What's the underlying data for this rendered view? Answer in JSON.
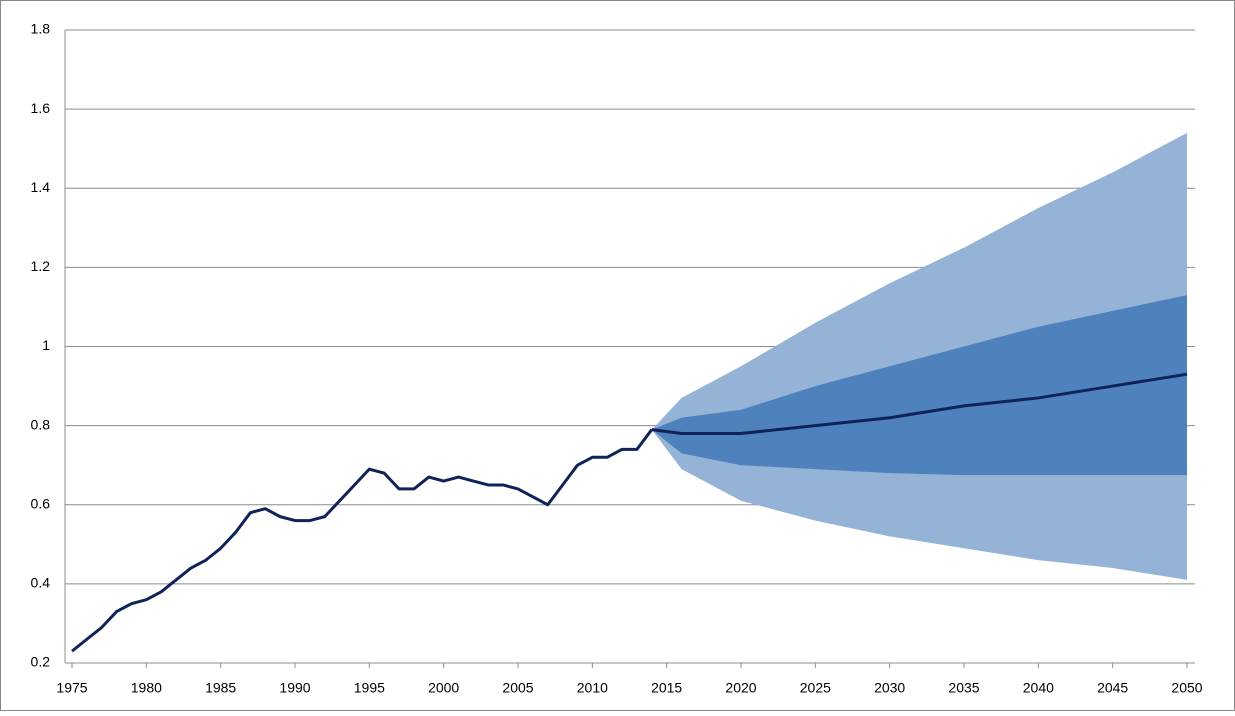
{
  "chart_data": {
    "type": "line",
    "x": [
      1975,
      1976,
      1977,
      1978,
      1979,
      1980,
      1981,
      1982,
      1983,
      1984,
      1985,
      1986,
      1987,
      1988,
      1989,
      1990,
      1991,
      1992,
      1993,
      1994,
      1995,
      1996,
      1997,
      1998,
      1999,
      2000,
      2001,
      2002,
      2003,
      2004,
      2005,
      2006,
      2007,
      2008,
      2009,
      2010,
      2011,
      2012,
      2013,
      2014,
      2016,
      2020,
      2025,
      2030,
      2035,
      2040,
      2045,
      2050
    ],
    "series": [
      {
        "color": "#0f2358",
        "values": [
          0.23,
          0.26,
          0.29,
          0.33,
          0.35,
          0.36,
          0.38,
          0.41,
          0.44,
          0.46,
          0.49,
          0.53,
          0.58,
          0.59,
          0.57,
          0.56,
          0.56,
          0.57,
          0.61,
          0.65,
          0.69,
          0.68,
          0.64,
          0.64,
          0.67,
          0.66,
          0.67,
          0.66,
          0.65,
          0.65,
          0.64,
          0.62,
          0.6,
          0.65,
          0.7,
          0.72,
          0.72,
          0.74,
          0.74,
          0.79,
          null,
          null,
          null,
          null,
          null,
          null,
          null,
          null
        ]
      },
      {
        "color": "#0f2358",
        "values": [
          null,
          null,
          null,
          null,
          null,
          null,
          null,
          null,
          null,
          null,
          null,
          null,
          null,
          null,
          null,
          null,
          null,
          null,
          null,
          null,
          null,
          null,
          null,
          null,
          null,
          null,
          null,
          null,
          null,
          null,
          null,
          null,
          null,
          null,
          null,
          null,
          null,
          null,
          null,
          0.79,
          0.78,
          0.78,
          0.8,
          0.82,
          0.85,
          0.87,
          0.9,
          0.93
        ]
      }
    ],
    "bands": [
      {
        "color": "#95b3d7",
        "lower": [
          0.79,
          0.69,
          0.61,
          0.56,
          0.52,
          0.49,
          0.46,
          0.44,
          0.41
        ],
        "upper": [
          0.79,
          0.87,
          0.95,
          1.06,
          1.16,
          1.25,
          1.35,
          1.44,
          1.54
        ]
      },
      {
        "color": "#4f81bd",
        "lower": [
          0.79,
          0.73,
          0.7,
          0.69,
          0.68,
          0.675,
          0.675,
          0.675,
          0.675
        ],
        "upper": [
          0.79,
          0.82,
          0.84,
          0.9,
          0.95,
          1.0,
          1.05,
          1.09,
          1.13
        ]
      }
    ],
    "band_x": [
      2014,
      2016,
      2020,
      2025,
      2030,
      2035,
      2040,
      2045,
      2050
    ],
    "xlim": [
      1975,
      2050
    ],
    "xticks": [
      1975,
      1980,
      1985,
      1990,
      1995,
      2000,
      2005,
      2010,
      2015,
      2020,
      2025,
      2030,
      2035,
      2040,
      2045,
      2050
    ],
    "ylim": [
      0.2,
      1.8
    ],
    "yticks": [
      0.2,
      0.4,
      0.6,
      0.8,
      1,
      1.2,
      1.4,
      1.6,
      1.8
    ],
    "grid": true
  }
}
